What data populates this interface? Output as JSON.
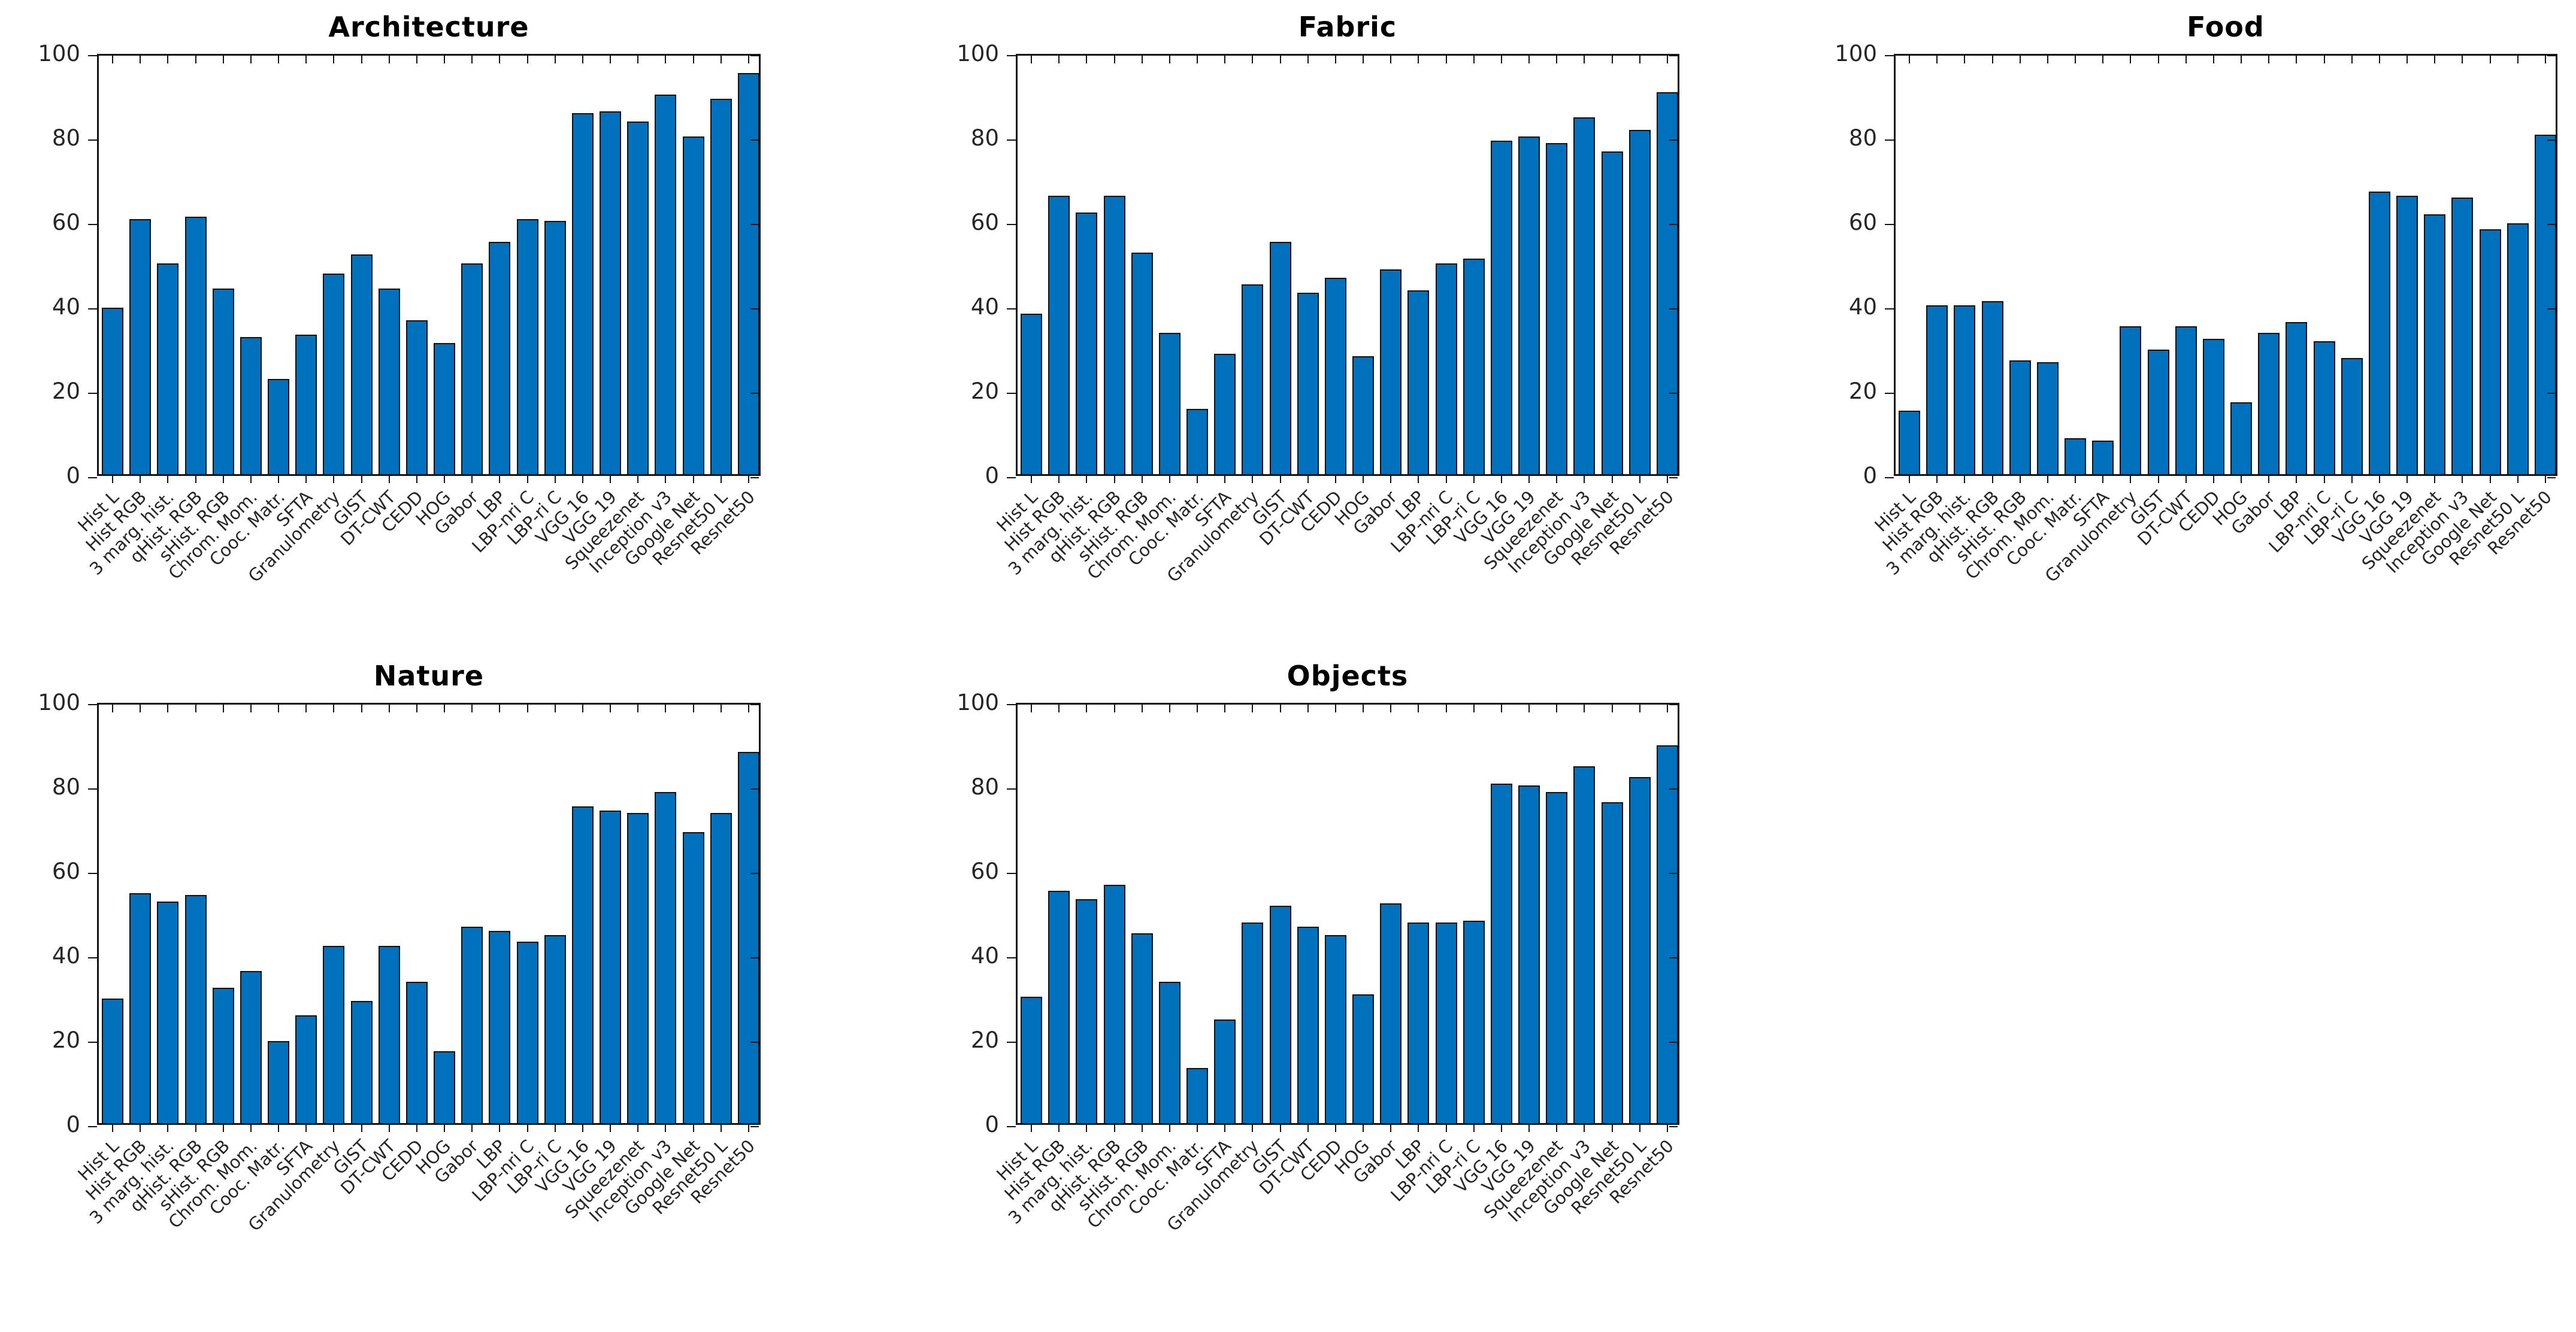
{
  "figure": {
    "background": "#ffffff",
    "num_subplots": 5,
    "subplot_grid": "2 rows x 3 columns (last cell empty)"
  },
  "style": {
    "bar_color": "#0072BD",
    "bar_edge_color": "#0f0f0f",
    "axis_color": "#141414",
    "tick_label_color": "#262626",
    "title_color": "#000000"
  },
  "categories": [
    "Hist L",
    "Hist RGB",
    "3 marg. hist.",
    "qHist. RGB",
    "sHist. RGB",
    "Chrom. Mom.",
    "Cooc. Matr.",
    "SFTA",
    "Granulometry",
    "GIST",
    "DT-CWT",
    "CEDD",
    "HOG",
    "Gabor",
    "LBP",
    "LBP-nri C",
    "LBP-ri C",
    "VGG 16",
    "VGG 19",
    "Squeezenet",
    "Inception v3",
    "Google Net",
    "Resnet50 L",
    "Resnet50"
  ],
  "chart_data": [
    {
      "type": "bar",
      "title": "Architecture",
      "grid_position": {
        "row": 1,
        "col": 1
      },
      "xlabel": "",
      "ylabel": "",
      "ylim": [
        0,
        100
      ],
      "yticks": [
        0,
        20,
        40,
        60,
        80,
        100
      ],
      "grid": false,
      "legend": null,
      "categories": [
        "Hist L",
        "Hist RGB",
        "3 marg. hist.",
        "qHist. RGB",
        "sHist. RGB",
        "Chrom. Mom.",
        "Cooc. Matr.",
        "SFTA",
        "Granulometry",
        "GIST",
        "DT-CWT",
        "CEDD",
        "HOG",
        "Gabor",
        "LBP",
        "LBP-nri C",
        "LBP-ri C",
        "VGG 16",
        "VGG 19",
        "Squeezenet",
        "Inception v3",
        "Google Net",
        "Resnet50 L",
        "Resnet50"
      ],
      "values": [
        39.5,
        60.5,
        50,
        61,
        44,
        32.5,
        22.5,
        33,
        47.5,
        52,
        44,
        36.5,
        31,
        50,
        55,
        60.5,
        60,
        85.5,
        86,
        83.5,
        90,
        80,
        89,
        95
      ]
    },
    {
      "type": "bar",
      "title": "Fabric",
      "grid_position": {
        "row": 1,
        "col": 2
      },
      "xlabel": "",
      "ylabel": "",
      "ylim": [
        0,
        100
      ],
      "yticks": [
        0,
        20,
        40,
        60,
        80,
        100
      ],
      "grid": false,
      "legend": null,
      "categories": [
        "Hist L",
        "Hist RGB",
        "3 marg. hist.",
        "qHist. RGB",
        "sHist. RGB",
        "Chrom. Mom.",
        "Cooc. Matr.",
        "SFTA",
        "Granulometry",
        "GIST",
        "DT-CWT",
        "CEDD",
        "HOG",
        "Gabor",
        "LBP",
        "LBP-nri C",
        "LBP-ri C",
        "VGG 16",
        "VGG 19",
        "Squeezenet",
        "Inception v3",
        "Google Net",
        "Resnet50 L",
        "Resnet50"
      ],
      "values": [
        38,
        66,
        62,
        66,
        52.5,
        33.5,
        15.5,
        28.5,
        45,
        55,
        43,
        46.5,
        28,
        48.5,
        43.5,
        50,
        51,
        79,
        80,
        78.5,
        84.5,
        76.5,
        81.5,
        90.5
      ]
    },
    {
      "type": "bar",
      "title": "Food",
      "grid_position": {
        "row": 1,
        "col": 3
      },
      "xlabel": "",
      "ylabel": "",
      "ylim": [
        0,
        100
      ],
      "yticks": [
        0,
        20,
        40,
        60,
        80,
        100
      ],
      "grid": false,
      "legend": null,
      "categories": [
        "Hist L",
        "Hist RGB",
        "3 marg. hist.",
        "qHist. RGB",
        "sHist. RGB",
        "Chrom. Mom.",
        "Cooc. Matr.",
        "SFTA",
        "Granulometry",
        "GIST",
        "DT-CWT",
        "CEDD",
        "HOG",
        "Gabor",
        "LBP",
        "LBP-nri C",
        "LBP-ri C",
        "VGG 16",
        "VGG 19",
        "Squeezenet",
        "Inception v3",
        "Google Net",
        "Resnet50 L",
        "Resnet50"
      ],
      "values": [
        15,
        40,
        40,
        41,
        27,
        26.5,
        8.5,
        8,
        35,
        29.5,
        35,
        32,
        17,
        33.5,
        36,
        31.5,
        27.5,
        67,
        66,
        61.5,
        65.5,
        58,
        59.5,
        80.5
      ]
    },
    {
      "type": "bar",
      "title": "Nature",
      "grid_position": {
        "row": 2,
        "col": 1
      },
      "xlabel": "",
      "ylabel": "",
      "ylim": [
        0,
        100
      ],
      "yticks": [
        0,
        20,
        40,
        60,
        80,
        100
      ],
      "grid": false,
      "legend": null,
      "categories": [
        "Hist L",
        "Hist RGB",
        "3 marg. hist.",
        "qHist. RGB",
        "sHist. RGB",
        "Chrom. Mom.",
        "Cooc. Matr.",
        "SFTA",
        "Granulometry",
        "GIST",
        "DT-CWT",
        "CEDD",
        "HOG",
        "Gabor",
        "LBP",
        "LBP-nri C",
        "LBP-ri C",
        "VGG 16",
        "VGG 19",
        "Squeezenet",
        "Inception v3",
        "Google Net",
        "Resnet50 L",
        "Resnet50"
      ],
      "values": [
        29.5,
        54.5,
        52.5,
        54,
        32,
        36,
        19.5,
        25.5,
        42,
        29,
        42,
        33.5,
        17,
        46.5,
        45.5,
        43,
        44.5,
        75,
        74,
        73.5,
        78.5,
        69,
        73.5,
        88
      ]
    },
    {
      "type": "bar",
      "title": "Objects",
      "grid_position": {
        "row": 2,
        "col": 2
      },
      "xlabel": "",
      "ylabel": "",
      "ylim": [
        0,
        100
      ],
      "yticks": [
        0,
        20,
        40,
        60,
        80,
        100
      ],
      "grid": false,
      "legend": null,
      "categories": [
        "Hist L",
        "Hist RGB",
        "3 marg. hist.",
        "qHist. RGB",
        "sHist. RGB",
        "Chrom. Mom.",
        "Cooc. Matr.",
        "SFTA",
        "Granulometry",
        "GIST",
        "DT-CWT",
        "CEDD",
        "HOG",
        "Gabor",
        "LBP",
        "LBP-nri C",
        "LBP-ri C",
        "VGG 16",
        "VGG 19",
        "Squeezenet",
        "Inception v3",
        "Google Net",
        "Resnet50 L",
        "Resnet50"
      ],
      "values": [
        30,
        55,
        53,
        56.5,
        45,
        33.5,
        13,
        24.5,
        47.5,
        51.5,
        46.5,
        44.5,
        30.5,
        52,
        47.5,
        47.5,
        48,
        80.5,
        80,
        78.5,
        84.5,
        76,
        82,
        89.5
      ]
    }
  ]
}
